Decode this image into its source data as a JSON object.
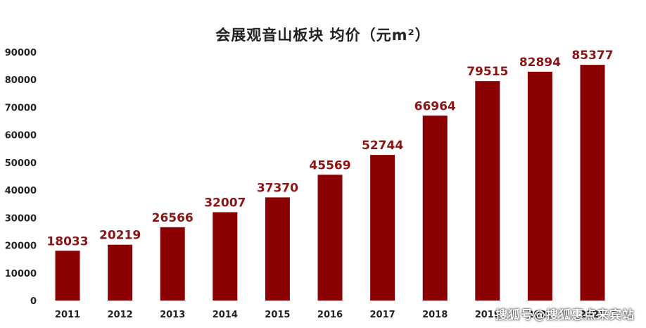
{
  "chart_data": {
    "type": "bar",
    "title": "会展观音山板块 均价（元m²）",
    "categories": [
      "2011",
      "2012",
      "2013",
      "2014",
      "2015",
      "2016",
      "2017",
      "2018",
      "2019",
      "2020",
      "2021"
    ],
    "values": [
      18033,
      20219,
      26566,
      32007,
      37370,
      45569,
      52744,
      66964,
      79515,
      82894,
      85377
    ],
    "y_ticks": [
      "0",
      "10000",
      "20000",
      "30000",
      "40000",
      "50000",
      "60000",
      "70000",
      "80000",
      "90000"
    ],
    "ylim": [
      0,
      90000
    ],
    "xlabel": "",
    "ylabel": "",
    "grid": false,
    "legend": "none",
    "bar_color": "#8b0000",
    "label_color": "#8b1414"
  },
  "watermark": "搜狐号@搜狐惠点来宾站"
}
